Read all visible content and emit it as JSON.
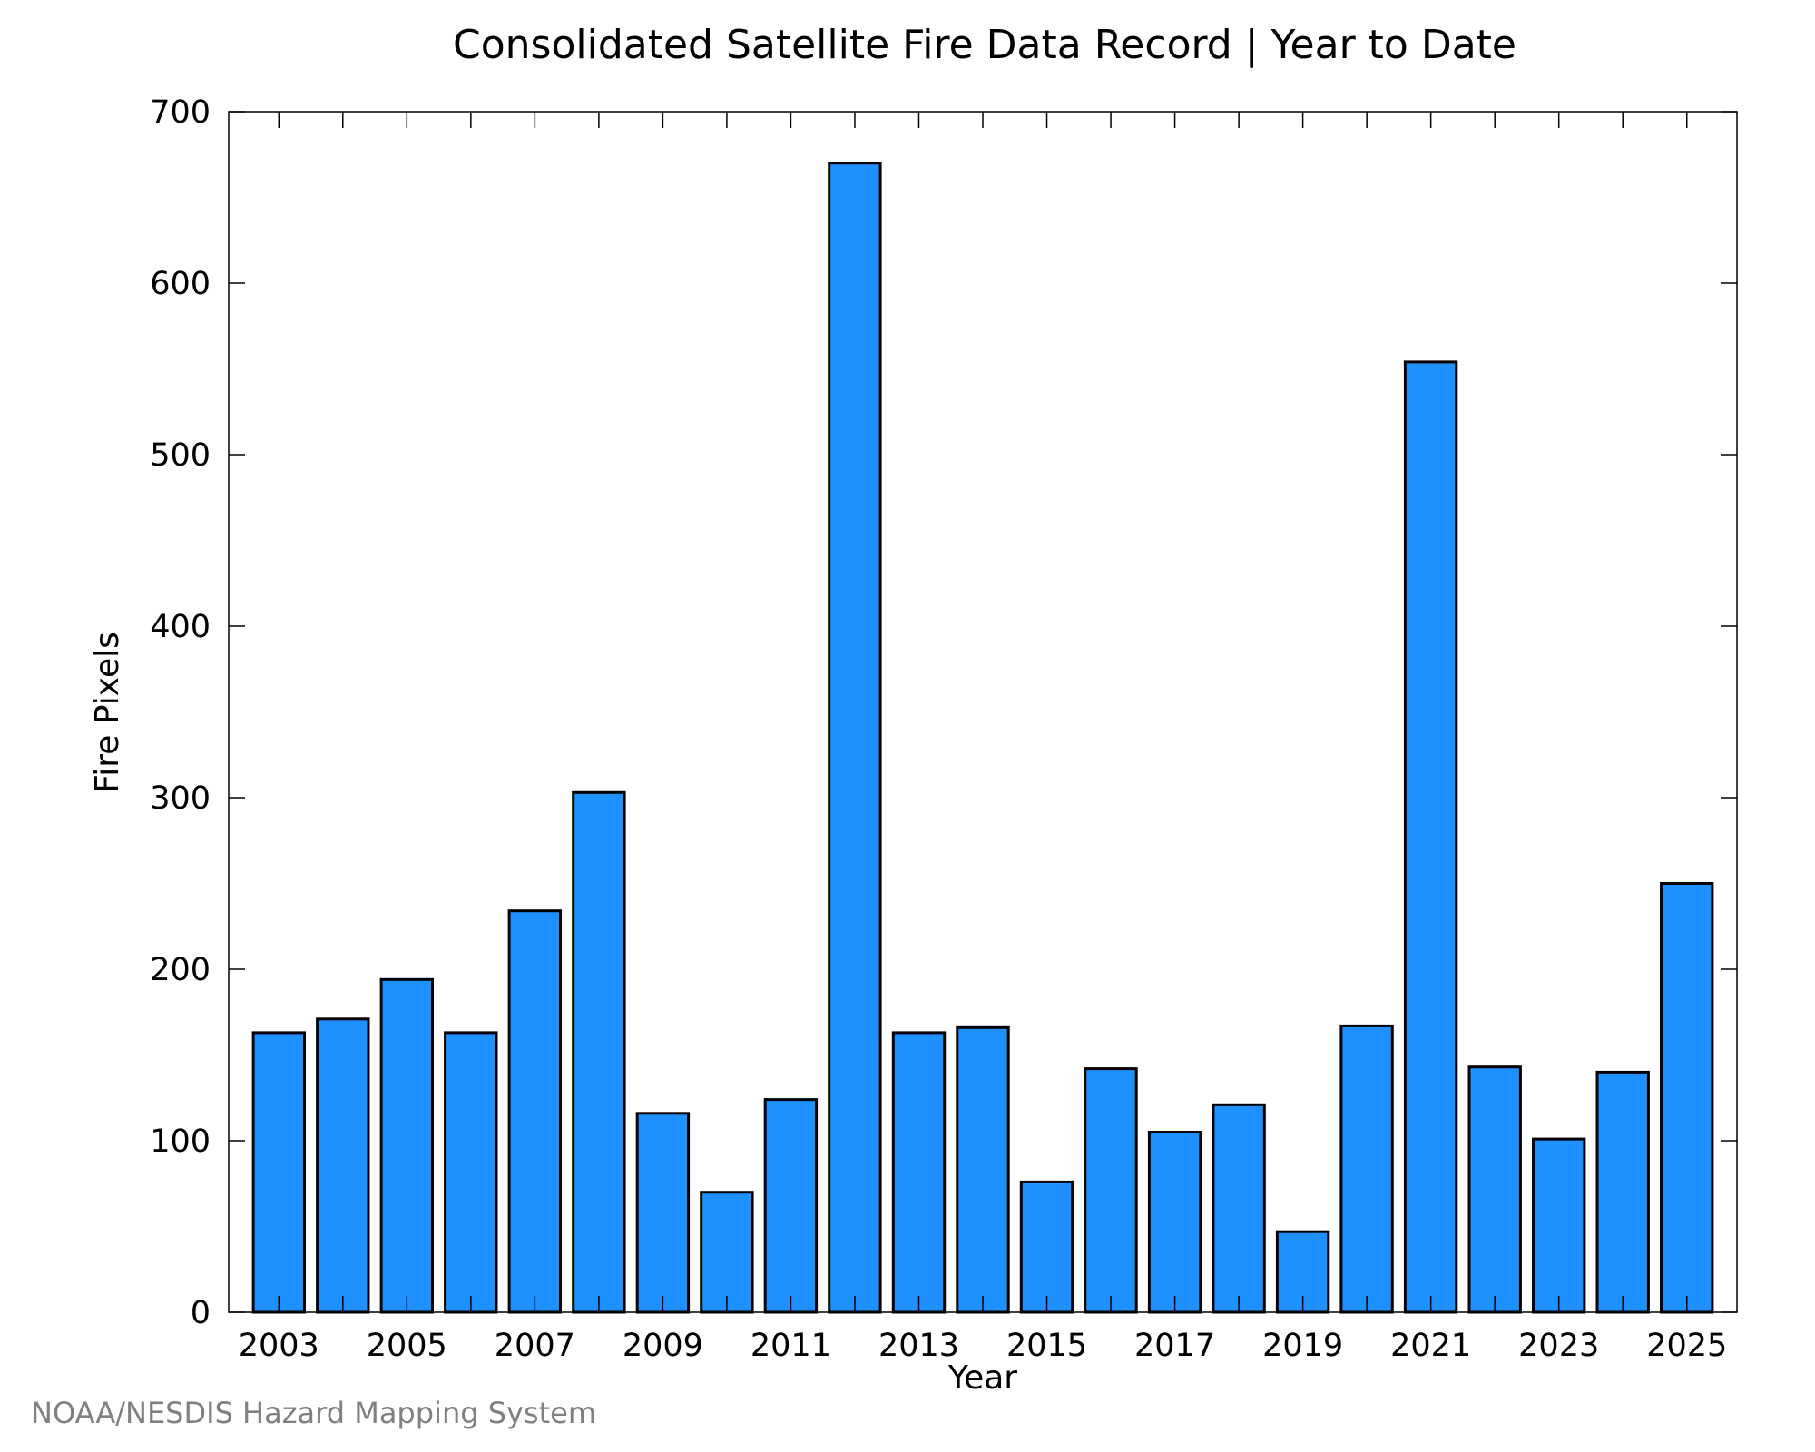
{
  "chart_data": {
    "type": "bar",
    "title": "Consolidated Satellite Fire Data Record | Year to Date",
    "xlabel": "Year",
    "ylabel": "Fire Pixels",
    "ylim": [
      0,
      700
    ],
    "yticks": [
      0,
      100,
      200,
      300,
      400,
      500,
      600,
      700
    ],
    "xtick_labels": [
      "2003",
      "2005",
      "2007",
      "2009",
      "2011",
      "2013",
      "2015",
      "2017",
      "2019",
      "2021",
      "2023",
      "2025"
    ],
    "categories": [
      "2003",
      "2004",
      "2005",
      "2006",
      "2007",
      "2008",
      "2009",
      "2010",
      "2011",
      "2012",
      "2013",
      "2014",
      "2015",
      "2016",
      "2017",
      "2018",
      "2019",
      "2020",
      "2021",
      "2022",
      "2023",
      "2024",
      "2025"
    ],
    "values": [
      163,
      171,
      194,
      163,
      234,
      303,
      116,
      70,
      124,
      670,
      163,
      166,
      76,
      142,
      105,
      121,
      47,
      167,
      554,
      143,
      101,
      140,
      250
    ],
    "bar_color": "#1e90ff",
    "grid": false,
    "legend": "none"
  },
  "credit": "NOAA/NESDIS Hazard Mapping System"
}
